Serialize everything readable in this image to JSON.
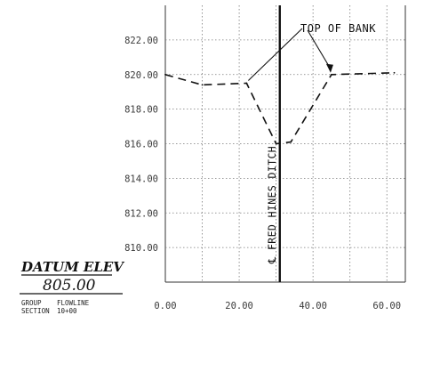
{
  "chart_data": {
    "type": "line",
    "x_ticks": [
      "0.00",
      "20.00",
      "40.00",
      "60.00"
    ],
    "y_ticks": [
      "822.00",
      "820.00",
      "818.00",
      "816.00",
      "814.00",
      "812.00",
      "810.00"
    ],
    "xlim": [
      0,
      65
    ],
    "ylim": [
      808,
      824
    ],
    "grid": true,
    "series": [
      {
        "points": [
          {
            "x": 0,
            "y": 820.0
          },
          {
            "x": 10,
            "y": 819.4
          },
          {
            "x": 22,
            "y": 819.5
          },
          {
            "x": 30,
            "y": 816.0
          },
          {
            "x": 34,
            "y": 816.1
          },
          {
            "x": 45,
            "y": 820.0
          },
          {
            "x": 62,
            "y": 820.1
          }
        ]
      }
    ],
    "annotations": {
      "top_of_bank": "TOP OF BANK",
      "ditch_label": "℄ FRED HINES DITCH",
      "ditch_station": 31
    }
  },
  "datum": {
    "title": "DATUM ELEV",
    "value": "805.00"
  },
  "legend": {
    "row1_label": "GROUP",
    "row1_value": "FLOWLINE",
    "row2_label": "SECTION",
    "row2_value": "10+00"
  }
}
